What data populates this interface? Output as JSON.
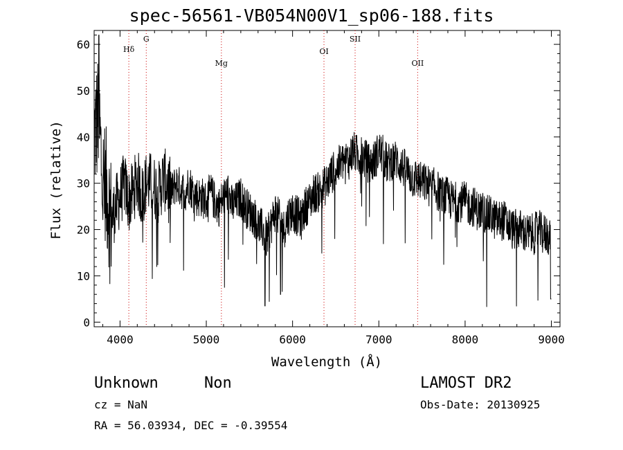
{
  "chart_data": {
    "type": "line",
    "title": "spec-56561-VB054N00V1_sp06-188.fits",
    "xlabel": "Wavelength (Å)",
    "ylabel": "Flux (relative)",
    "xlim": [
      3700,
      9100
    ],
    "ylim": [
      -1,
      63
    ],
    "x_ticks": [
      4000,
      5000,
      6000,
      7000,
      8000,
      9000
    ],
    "y_ticks": [
      0,
      10,
      20,
      30,
      40,
      50,
      60
    ],
    "grid": false,
    "line_color": "#000000",
    "marker_color": "#cc0000",
    "spectral_lines": [
      {
        "label": "Hδ",
        "wavelength": 4102
      },
      {
        "label": "G",
        "wavelength": 4304
      },
      {
        "label": "Mg",
        "wavelength": 5175
      },
      {
        "label": "OI",
        "wavelength": 6364
      },
      {
        "label": "SII",
        "wavelength": 6725
      },
      {
        "label": "OII",
        "wavelength": 7450
      }
    ],
    "series": [
      {
        "x": [
          3700,
          3750,
          3800,
          3850,
          3900,
          3950,
          4000,
          4050,
          4100,
          4150,
          4200,
          4250,
          4300,
          4350,
          4400,
          4450,
          4500,
          4550,
          4600,
          4650,
          4700,
          4750,
          4800,
          4850,
          4900,
          4950,
          5000,
          5050,
          5100,
          5150,
          5200,
          5250,
          5300,
          5350,
          5400,
          5450,
          5500,
          5550,
          5600,
          5650,
          5700,
          5750,
          5800,
          5850,
          5900,
          5950,
          6000,
          6050,
          6100,
          6150,
          6200,
          6250,
          6300,
          6350,
          6400,
          6450,
          6500,
          6550,
          6600,
          6650,
          6700,
          6750,
          6800,
          6850,
          6900,
          6950,
          7000,
          7050,
          7100,
          7150,
          7200,
          7250,
          7300,
          7350,
          7400,
          7450,
          7500,
          7550,
          7600,
          7650,
          7700,
          7750,
          7800,
          7850,
          7900,
          7950,
          8000,
          8050,
          8100,
          8150,
          8200,
          8250,
          8300,
          8350,
          8400,
          8450,
          8500,
          8550,
          8600,
          8650,
          8700,
          8750,
          8800,
          8850,
          8900,
          8950,
          9000
        ],
        "values": [
          40,
          45,
          30,
          28,
          22,
          25,
          27,
          30,
          26,
          28,
          31,
          27,
          30,
          30,
          29,
          28,
          31,
          30,
          28,
          30,
          29,
          28,
          30,
          28,
          27,
          27,
          26,
          28,
          26,
          25,
          27,
          28,
          25,
          26,
          27,
          25,
          24,
          23,
          21,
          20,
          18,
          21,
          24,
          22,
          20,
          23,
          24,
          23,
          22,
          25,
          26,
          28,
          28,
          29,
          30,
          32,
          33,
          34,
          35,
          35,
          37,
          36,
          36,
          35,
          34,
          35,
          37,
          36,
          34,
          35,
          35,
          34,
          33,
          32,
          31,
          31,
          30,
          30,
          29,
          29,
          28,
          27,
          27,
          26,
          26,
          26,
          26,
          25,
          25,
          24,
          24,
          23,
          23,
          22,
          22,
          22,
          21,
          20,
          20,
          20,
          19,
          19,
          19,
          20,
          19,
          19,
          18
        ]
      }
    ]
  },
  "info": {
    "class": "Unknown",
    "subclass": "Non",
    "survey": "LAMOST DR2",
    "cz": "cz = NaN",
    "obs_date": "Obs-Date: 20130925",
    "radec": "RA =  56.03934, DEC =  -0.39554"
  }
}
